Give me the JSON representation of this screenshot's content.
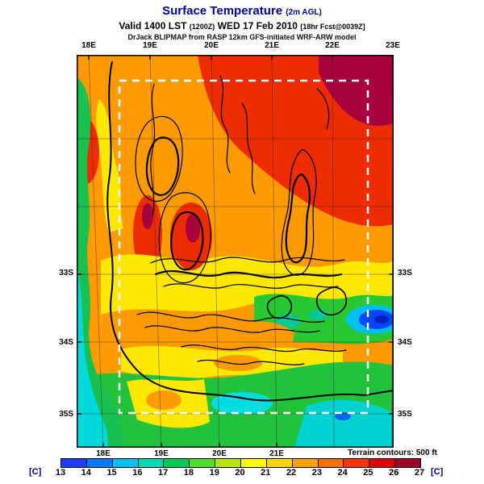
{
  "header": {
    "title": "Surface Temperature",
    "title_units": "(2m AGL)",
    "valid_prefix": "Valid 1400 LST",
    "valid_zulu": "(1200Z)",
    "valid_date": "WED 17 Feb 2010",
    "valid_fcst": "[18hr Fcst@0039Z]",
    "model_line": "DrJack BLIPMAP from RASP 12km GFS-initiated WRF-ARW model"
  },
  "map": {
    "top_labels": [
      "18E",
      "19E",
      "20E",
      "21E",
      "22E",
      "23E"
    ],
    "bottom_labels": [
      "18E",
      "19E",
      "20E",
      "21E"
    ],
    "left_labels": [
      "33S",
      "34S",
      "35S"
    ],
    "right_labels": [
      "33S",
      "34S",
      "35S"
    ],
    "footnote": "Terrain contours: 500 ft"
  },
  "colorbar": {
    "unit_left": "[C]",
    "unit_right": "[C]",
    "ticks": [
      "13",
      "14",
      "15",
      "16",
      "17",
      "18",
      "19",
      "20",
      "21",
      "22",
      "23",
      "24",
      "25",
      "26",
      "27"
    ],
    "segment_colors": [
      "#1e3cff",
      "#0078ff",
      "#00c0ff",
      "#00d8b4",
      "#00c850",
      "#50dc28",
      "#b4e600",
      "#ffff00",
      "#ffd200",
      "#ffa000",
      "#ff6e00",
      "#ff3200",
      "#e00000",
      "#a00028"
    ]
  },
  "chart_data": {
    "type": "heatmap",
    "title": "Surface Temperature (2m AGL)",
    "valid": "Valid 1400 LST (1200Z) WED 17 Feb 2010 [18hr Fcst@0039Z]",
    "source": "DrJack BLIPMAP from RASP 12km GFS-initiated WRF-ARW model",
    "colorbar_unit": "C",
    "colorbar_ticks": [
      13,
      14,
      15,
      16,
      17,
      18,
      19,
      20,
      21,
      22,
      23,
      24,
      25,
      26,
      27
    ],
    "x_ticks_lon": [
      "18E",
      "19E",
      "20E",
      "21E",
      "22E",
      "23E"
    ],
    "y_ticks_lat": [
      "33S",
      "34S",
      "35S"
    ],
    "overlay": "terrain contours every 500 ft, inner nest domain shown as white dashed rectangle"
  }
}
